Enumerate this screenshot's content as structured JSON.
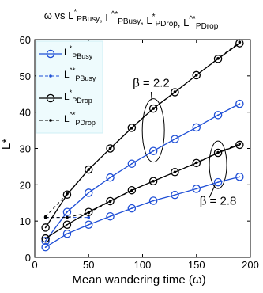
{
  "chart_data": {
    "type": "line",
    "title": "ω vs L*_PBusy, L^*_PBusy, L*_PDrop, L^*_PDrop",
    "title_parts": {
      "prefix": "ω vs L",
      "items": [
        {
          "base": "L",
          "sup": "*",
          "sub": "PBusy"
        },
        {
          "base": "L",
          "sup": "^*",
          "sub": "PBusy"
        },
        {
          "base": "L",
          "sup": "*",
          "sub": "PDrop"
        },
        {
          "base": "L",
          "sup": "^*",
          "sub": "PDrop"
        }
      ]
    },
    "xlabel": "Mean wandering time (ω)",
    "ylabel": "L*",
    "xlim": [
      0,
      200
    ],
    "ylim": [
      0,
      60
    ],
    "xticks": [
      0,
      50,
      100,
      150,
      200
    ],
    "yticks": [
      0,
      10,
      20,
      30,
      40,
      50,
      60
    ],
    "grid": false,
    "legend_position": "top-left",
    "annotations": [
      {
        "text": "β = 2.2",
        "x": 108,
        "y": 47
      },
      {
        "text": "β = 2.8",
        "x": 170,
        "y": 14.5
      }
    ],
    "series": [
      {
        "name": "L*_PBusy",
        "legend_base": "L",
        "legend_sup": "*",
        "legend_sub": "PBusy",
        "color": "#1f4fd6",
        "marker": "circle",
        "dash": false,
        "groups": [
          {
            "beta": "2.2",
            "x": [
              10,
              30,
              50,
              70,
              90,
              110,
              130,
              150,
              170,
              190
            ],
            "y": [
              4.5,
              12.5,
              17.8,
              22.0,
              25.8,
              29.3,
              32.6,
              35.8,
              39.2,
              42.3
            ]
          },
          {
            "beta": "2.8",
            "x": [
              10,
              30,
              50,
              70,
              90,
              110,
              130,
              150,
              170,
              190
            ],
            "y": [
              2.8,
              6.5,
              9.0,
              11.3,
              13.5,
              15.6,
              17.2,
              18.9,
              20.7,
              22.2
            ]
          }
        ]
      },
      {
        "name": "L^*_PBusy",
        "legend_base": "L",
        "legend_sup": "^*",
        "legend_sub": "PBusy",
        "color": "#1f4fd6",
        "marker": "dot",
        "dash": true,
        "groups": [
          {
            "beta": "2.2",
            "x": [
              10,
              30,
              50
            ],
            "y": [
              11.0,
              11.0,
              11.0
            ]
          }
        ]
      },
      {
        "name": "L*_PDrop",
        "legend_base": "L",
        "legend_sup": "*",
        "legend_sub": "PDrop",
        "color": "#000000",
        "marker": "circle",
        "dash": false,
        "groups": [
          {
            "beta": "2.2",
            "x": [
              10,
              30,
              50,
              70,
              90,
              110,
              130,
              150,
              170,
              190
            ],
            "y": [
              8.2,
              17.3,
              24.2,
              30.0,
              35.7,
              41.0,
              45.5,
              50.2,
              54.7,
              59.0
            ]
          },
          {
            "beta": "2.8",
            "x": [
              10,
              30,
              50,
              70,
              90,
              110,
              130,
              150,
              170,
              190
            ],
            "y": [
              5.2,
              9.0,
              12.5,
              15.5,
              18.5,
              21.0,
              23.5,
              26.0,
              28.8,
              31.0
            ]
          }
        ]
      },
      {
        "name": "L^*_PDrop",
        "legend_base": "L",
        "legend_sup": "^*",
        "legend_sub": "PDrop",
        "color": "#000000",
        "marker": "dot",
        "dash": true,
        "groups": [
          {
            "beta": "2.2",
            "x": [
              10,
              30,
              50,
              70,
              90,
              110,
              130,
              150,
              170,
              190
            ],
            "y": [
              11.2,
              17.5,
              24.2,
              30.0,
              35.6,
              41.0,
              45.6,
              50.2,
              54.8,
              59.3
            ]
          },
          {
            "beta": "2.8",
            "x": [
              10,
              30,
              50,
              70,
              90,
              110,
              130,
              150,
              170,
              190
            ],
            "y": [
              11.0,
              11.0,
              12.3,
              15.4,
              18.4,
              21.0,
              23.5,
              26.1,
              28.9,
              31.3
            ]
          }
        ]
      }
    ]
  }
}
